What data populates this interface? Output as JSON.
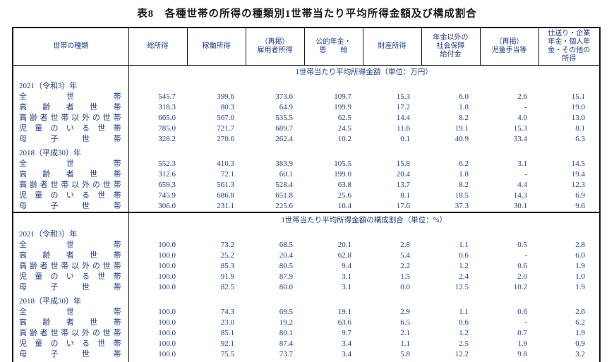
{
  "colors": {
    "text": "#223c84",
    "border": "#1a1a1a",
    "background": "#ffffff"
  },
  "document": {
    "title": "表8　各種世帯の所得の種類別1世帯当たり平均所得金額及び構成割合"
  },
  "table": {
    "row_header": "世帯の種類",
    "columns": [
      "総所得",
      "稼働所得",
      "（再掲）\n雇用者所得",
      "公的年金・\n恩　　給",
      "財産所得",
      "年金以外の\n社会保障\n給付金",
      "（再掲）\n児童手当等",
      "仕送り・企業\n年金・個人年\n金・その他の\n所得"
    ],
    "sections": [
      {
        "title": "1世帯当たり平均所得金額（単位：万円）",
        "groups": [
          {
            "year": "2021（令和3）年",
            "rows": [
              {
                "label": "全世帯",
                "values": [
                  "545.7",
                  "399.6",
                  "373.6",
                  "109.7",
                  "15.3",
                  "6.0",
                  "2.6",
                  "15.1"
                ]
              },
              {
                "label": "高齢者世帯",
                "values": [
                  "318.3",
                  "80.3",
                  "64.9",
                  "199.9",
                  "17.2",
                  "1.8",
                  "-",
                  "19.0"
                ]
              },
              {
                "label": "高齢者世帯以外の世帯",
                "values": [
                  "665.0",
                  "567.0",
                  "535.5",
                  "62.5",
                  "14.4",
                  "8.2",
                  "4.0",
                  "13.0"
                ]
              },
              {
                "label": "児童のいる世帯",
                "values": [
                  "785.0",
                  "721.7",
                  "689.7",
                  "24.5",
                  "11.6",
                  "19.1",
                  "15.3",
                  "8.1"
                ]
              },
              {
                "label": "母子世帯",
                "values": [
                  "328.2",
                  "270.6",
                  "262.4",
                  "10.2",
                  "0.1",
                  "40.9",
                  "33.4",
                  "6.3"
                ]
              }
            ]
          },
          {
            "year": "2018（平成30）年",
            "rows": [
              {
                "label": "全世帯",
                "values": [
                  "552.3",
                  "410.3",
                  "383.9",
                  "105.5",
                  "15.8",
                  "6.2",
                  "3.1",
                  "14.5"
                ]
              },
              {
                "label": "高齢者世帯",
                "values": [
                  "312.6",
                  "72.1",
                  "60.1",
                  "199.0",
                  "20.4",
                  "1.8",
                  "-",
                  "19.4"
                ]
              },
              {
                "label": "高齢者世帯以外の世帯",
                "values": [
                  "659.3",
                  "561.3",
                  "528.4",
                  "63.8",
                  "13.7",
                  "8.2",
                  "4.4",
                  "12.3"
                ]
              },
              {
                "label": "児童のいる世帯",
                "values": [
                  "745.9",
                  "686.8",
                  "651.8",
                  "25.6",
                  "8.1",
                  "18.5",
                  "14.3",
                  "6.9"
                ]
              },
              {
                "label": "母子世帯",
                "values": [
                  "306.0",
                  "231.1",
                  "225.6",
                  "10.4",
                  "17.6",
                  "37.3",
                  "30.1",
                  "9.6"
                ]
              }
            ]
          }
        ]
      },
      {
        "title": "1世帯当たり平均所得金額の構成割合（単位：%）",
        "groups": [
          {
            "year": "2021（令和3）年",
            "rows": [
              {
                "label": "全世帯",
                "values": [
                  "100.0",
                  "73.2",
                  "68.5",
                  "20.1",
                  "2.8",
                  "1.1",
                  "0.5",
                  "2.8"
                ]
              },
              {
                "label": "高齢者世帯",
                "values": [
                  "100.0",
                  "25.2",
                  "20.4",
                  "62.8",
                  "5.4",
                  "0.6",
                  "-",
                  "6.0"
                ]
              },
              {
                "label": "高齢者世帯以外の世帯",
                "values": [
                  "100.0",
                  "85.3",
                  "80.5",
                  "9.4",
                  "2.2",
                  "1.2",
                  "0.6",
                  "1.9"
                ]
              },
              {
                "label": "児童のいる世帯",
                "values": [
                  "100.0",
                  "91.9",
                  "87.9",
                  "3.1",
                  "1.5",
                  "2.4",
                  "2.0",
                  "1.0"
                ]
              },
              {
                "label": "母子世帯",
                "values": [
                  "100.0",
                  "82.5",
                  "80.0",
                  "3.1",
                  "0.0",
                  "12.5",
                  "10.2",
                  "1.9"
                ]
              }
            ]
          },
          {
            "year": "2018（平成30）年",
            "rows": [
              {
                "label": "全世帯",
                "values": [
                  "100.0",
                  "74.3",
                  "69.5",
                  "19.1",
                  "2.9",
                  "1.1",
                  "0.6",
                  "2.6"
                ]
              },
              {
                "label": "高齢者世帯",
                "values": [
                  "100.0",
                  "23.0",
                  "19.2",
                  "63.6",
                  "6.5",
                  "0.6",
                  "-",
                  "6.2"
                ]
              },
              {
                "label": "高齢者世帯以外の世帯",
                "values": [
                  "100.0",
                  "85.1",
                  "80.1",
                  "9.7",
                  "2.1",
                  "1.2",
                  "0.7",
                  "1.9"
                ]
              },
              {
                "label": "児童のいる世帯",
                "values": [
                  "100.0",
                  "92.1",
                  "87.4",
                  "3.4",
                  "1.1",
                  "2.5",
                  "1.9",
                  "0.9"
                ]
              },
              {
                "label": "母子世帯",
                "values": [
                  "100.0",
                  "75.5",
                  "73.7",
                  "3.4",
                  "5.8",
                  "12.2",
                  "9.8",
                  "3.2"
                ]
              }
            ]
          }
        ]
      }
    ]
  }
}
